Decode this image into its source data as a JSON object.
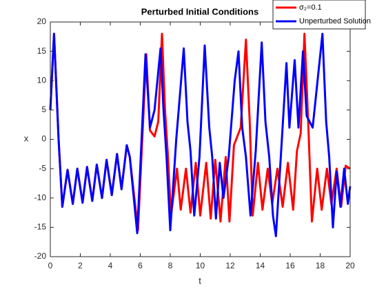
{
  "chart_data": {
    "type": "line",
    "title": "Perturbed Initial Conditions",
    "xlabel": "t",
    "ylabel": "x",
    "xlim": [
      0,
      20
    ],
    "ylim": [
      -20,
      20
    ],
    "xticks": [
      0,
      2,
      4,
      6,
      8,
      10,
      12,
      14,
      16,
      18,
      20
    ],
    "yticks": [
      -20,
      -15,
      -10,
      -5,
      0,
      5,
      10,
      15,
      20
    ],
    "grid": false,
    "legend": "northeast",
    "series": [
      {
        "name": "σ₂=0.1",
        "color": "#ff0000",
        "x": [
          0,
          0.25,
          0.55,
          0.8,
          1.15,
          1.5,
          1.8,
          2.15,
          2.45,
          2.8,
          3.1,
          3.45,
          3.75,
          4.1,
          4.45,
          4.75,
          5.1,
          5.3,
          5.85,
          6.4,
          6.65,
          6.95,
          7.2,
          7.45,
          7.65,
          7.85,
          8.05,
          8.45,
          8.7,
          9.05,
          9.35,
          9.7,
          10.0,
          10.4,
          10.7,
          11.0,
          11.35,
          11.7,
          11.95,
          12.25,
          12.7,
          13.05,
          13.3,
          13.5,
          13.85,
          14.15,
          14.5,
          14.8,
          15.15,
          15.5,
          15.85,
          16.2,
          16.45,
          16.7,
          16.95,
          17.2,
          17.45,
          17.8,
          18.1,
          18.45,
          18.75,
          19.1,
          19.4,
          19.7,
          20
        ],
        "values": [
          5,
          18,
          0,
          -11.5,
          -5.2,
          -11,
          -5,
          -10.8,
          -4.7,
          -10.5,
          -4.3,
          -10,
          -3.5,
          -9.5,
          -2.5,
          -8.5,
          -1,
          -3,
          -15.5,
          14.5,
          1.5,
          0.5,
          3,
          18,
          5,
          -3,
          -13,
          -5,
          -12,
          -5,
          -12.5,
          -4,
          -13,
          -4,
          -13.5,
          -3.5,
          -14,
          -3,
          -14,
          -1,
          2,
          17,
          3,
          -13,
          -4,
          -12,
          -5,
          -11,
          -5,
          -11.5,
          -4,
          -12,
          -2,
          1,
          18,
          3,
          -14,
          -5,
          -12,
          -5,
          -11,
          -5,
          -11.5,
          -4.5,
          -5
        ]
      },
      {
        "name": "Unperturbed Solution",
        "color": "#0000ff",
        "x": [
          0,
          0.25,
          0.55,
          0.8,
          1.15,
          1.5,
          1.8,
          2.15,
          2.45,
          2.8,
          3.1,
          3.45,
          3.75,
          4.1,
          4.45,
          4.75,
          5.1,
          5.3,
          5.8,
          6.35,
          6.65,
          6.95,
          7.35,
          7.55,
          7.75,
          8.0,
          8.4,
          8.9,
          9.15,
          9.35,
          9.6,
          9.95,
          10.3,
          10.6,
          10.8,
          11.05,
          11.3,
          11.55,
          11.9,
          12.3,
          12.55,
          12.8,
          13.05,
          13.35,
          13.7,
          14.1,
          14.35,
          14.6,
          14.85,
          15.05,
          15.4,
          15.75,
          15.95,
          16.3,
          16.55,
          16.85,
          17.1,
          17.5,
          18.15,
          18.4,
          18.6,
          18.85,
          19.1,
          19.35,
          19.6,
          19.85,
          20
        ],
        "values": [
          5,
          18,
          0,
          -11.5,
          -5.2,
          -11,
          -5,
          -10.8,
          -4.7,
          -10.5,
          -4.3,
          -10,
          -3.5,
          -9.5,
          -2.5,
          -8.5,
          -1,
          -3,
          -16,
          14.5,
          2,
          5,
          15.5,
          5,
          -3,
          -15.5,
          0,
          15.5,
          3,
          -2,
          -13,
          -3,
          16,
          2,
          -3,
          -13.5,
          -4,
          -10,
          -3,
          10,
          15,
          2,
          -3,
          -13,
          -2,
          16.5,
          3,
          -3,
          -13,
          -16.5,
          -2,
          13,
          2,
          13.5,
          2,
          15,
          4,
          2,
          18,
          3,
          -3,
          -15,
          -5.5,
          -11.5,
          -5,
          -11,
          -8
        ]
      }
    ]
  }
}
